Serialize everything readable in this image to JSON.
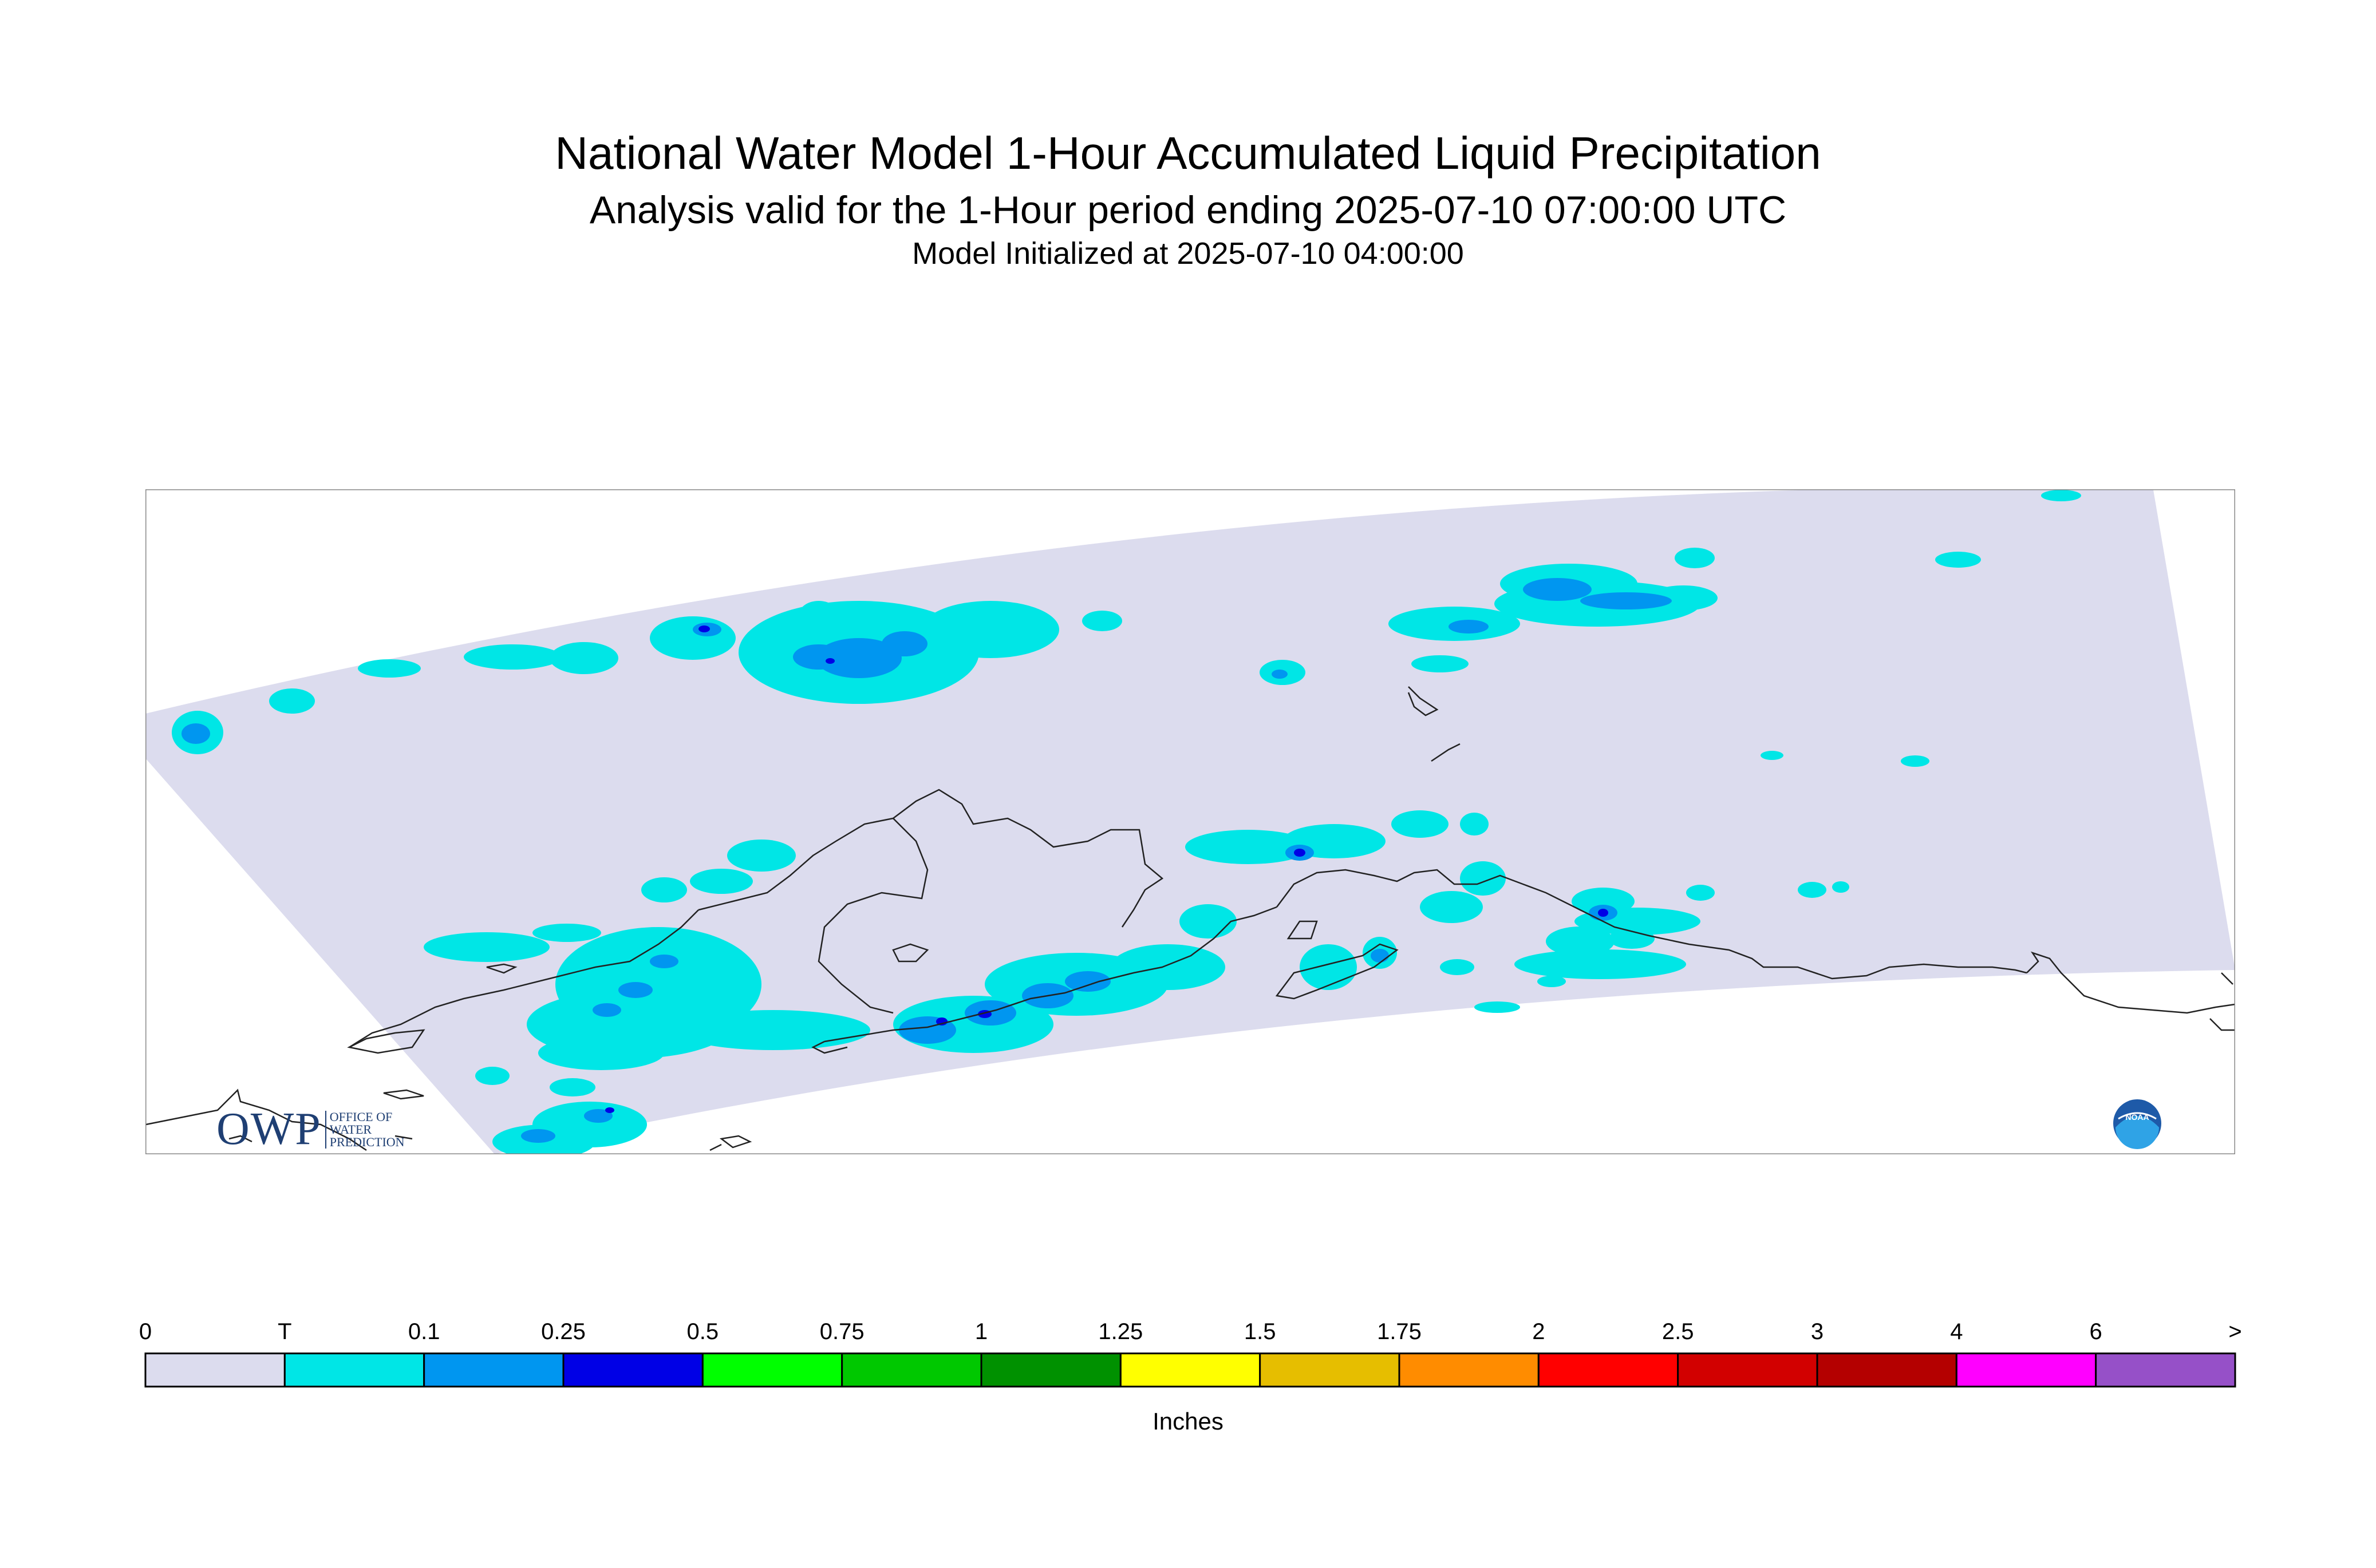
{
  "header": {
    "title": "National Water Model 1-Hour Accumulated Liquid Precipitation",
    "subtitle": "Analysis valid for the 1-Hour period ending 2025-07-10 07:00:00 UTC",
    "init_line": "Model Initialized at 2025-07-10 04:00:00"
  },
  "colors": {
    "domain_fill": "#dcdcee",
    "coast": "#222222",
    "frame": "#888888"
  },
  "legend": {
    "units": "Inches",
    "ticks": [
      "0",
      "T",
      "0.1",
      "0.25",
      "0.5",
      "0.75",
      "1",
      "1.25",
      "1.5",
      "1.75",
      "2",
      "2.5",
      "3",
      "4",
      "6",
      ">"
    ],
    "bins": [
      {
        "color": "#dcdcee"
      },
      {
        "color": "#00e6e6"
      },
      {
        "color": "#0096f0"
      },
      {
        "color": "#0000e6"
      },
      {
        "color": "#00ff00"
      },
      {
        "color": "#00c800"
      },
      {
        "color": "#009100"
      },
      {
        "color": "#ffff00"
      },
      {
        "color": "#e6be00"
      },
      {
        "color": "#ff8c00"
      },
      {
        "color": "#ff0000"
      },
      {
        "color": "#d20000"
      },
      {
        "color": "#b40000"
      },
      {
        "color": "#ff00ff"
      },
      {
        "color": "#9650c8"
      }
    ]
  },
  "logos": {
    "owp_main": "OWP",
    "owp_sub": [
      "OFFICE OF",
      "WATER",
      "PREDICTION"
    ],
    "noaa": "NOAA"
  },
  "icons": {
    "owp": "owp-logo-icon",
    "noaa": "noaa-logo-icon"
  }
}
